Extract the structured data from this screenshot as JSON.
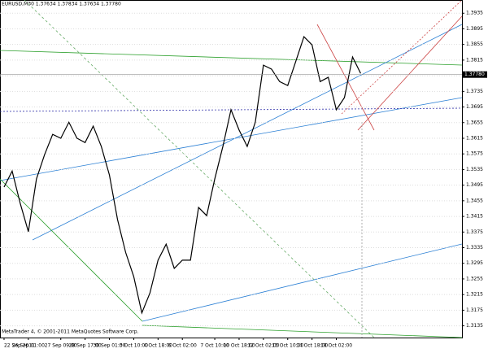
{
  "chart_data": {
    "type": "line",
    "title": "EURUSD,M30 1.37634 1.37834 1.37634 1.37780",
    "footer": "MetaTrader 4, © 2001-2011 MetaQuotes Software Corp.",
    "current_price": 1.3778,
    "current_price_label": "1.37780",
    "categories": [
      "22 Sep 2011",
      null,
      null,
      "26 Sep 01:00",
      null,
      null,
      null,
      "27 Sep 09:00",
      null,
      null,
      "28 Sep 17:00",
      null,
      null,
      "30 Sep 01:00",
      null,
      null,
      "3 Oct 10:00",
      null,
      null,
      "4 Oct 18:00",
      null,
      null,
      "6 Oct 02:00",
      null,
      null,
      null,
      "7 Oct 10:00",
      null,
      null,
      "10 Oct 18:00",
      null,
      null,
      "12 Oct 02:00",
      null,
      null,
      "13 Oct 10:00",
      null,
      null,
      "14 Oct 18:00",
      null,
      null,
      "18 Oct 02:00",
      null,
      null,
      null
    ],
    "series": [
      {
        "name": "EURUSD,M30",
        "color": "#000000",
        "values": [
          1.349,
          1.3531,
          1.3448,
          1.3376,
          1.3511,
          1.3573,
          1.3625,
          1.3615,
          1.3656,
          1.3615,
          1.3604,
          1.3646,
          1.3594,
          1.3521,
          1.3407,
          1.3323,
          1.3261,
          1.3168,
          1.3219,
          1.3303,
          1.3344,
          1.3282,
          1.3303,
          1.3303,
          1.3438,
          1.3417,
          1.3511,
          1.3594,
          1.3688,
          1.3636,
          1.3594,
          1.3656,
          1.3802,
          1.3792,
          1.376,
          1.375,
          1.3812,
          1.3875,
          1.3854,
          1.376,
          1.3771,
          1.3688,
          1.3719,
          1.3823,
          1.3781
        ]
      }
    ],
    "ylim": [
      1.3105,
      1.3948
    ],
    "yticks": [
      1.3935,
      1.3895,
      1.3855,
      1.3815,
      1.3775,
      1.3735,
      1.3695,
      1.3655,
      1.3615,
      1.3575,
      1.3535,
      1.3495,
      1.3455,
      1.3415,
      1.3375,
      1.3335,
      1.3295,
      1.3255,
      1.3215,
      1.3175,
      1.3135
    ],
    "grid": true
  }
}
